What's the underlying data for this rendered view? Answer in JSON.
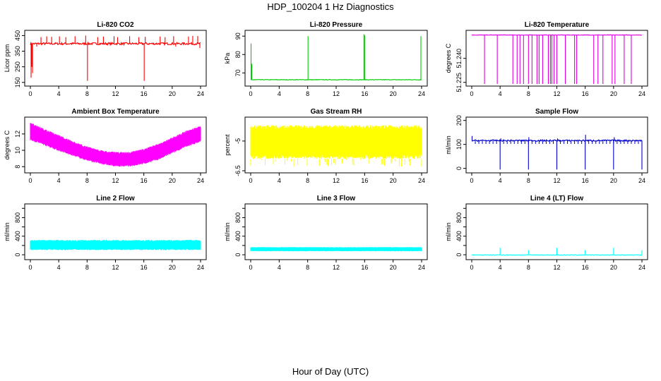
{
  "figure": {
    "title": "HDP_100204  1 Hz Diagnostics",
    "xlabel": "Hour of Day (UTC)"
  },
  "chart_data": [
    {
      "type": "line",
      "title": "Li-820 CO2",
      "ylabel": "Licor ppm",
      "color": "#ff0000",
      "xlim": [
        0,
        24
      ],
      "xticks": [
        0,
        4,
        8,
        12,
        16,
        20,
        24
      ],
      "ylim": [
        140,
        470
      ],
      "yticks": [
        150,
        250,
        350,
        450
      ],
      "baseline": 398,
      "noise": 7,
      "spikes": [
        [
          0.1,
          180
        ],
        [
          0.2,
          250
        ],
        [
          0.3,
          210
        ],
        [
          0.9,
          380
        ],
        [
          1.5,
          440
        ],
        [
          2.3,
          445
        ],
        [
          3.0,
          442
        ],
        [
          4.1,
          445
        ],
        [
          5.0,
          440
        ],
        [
          6.3,
          446
        ],
        [
          7.8,
          450
        ],
        [
          8.05,
          160
        ],
        [
          9.5,
          440
        ],
        [
          10.3,
          444
        ],
        [
          11.8,
          446
        ],
        [
          12.3,
          440
        ],
        [
          14.0,
          446
        ],
        [
          15.3,
          440
        ],
        [
          16.05,
          160
        ],
        [
          16.2,
          442
        ],
        [
          18.3,
          444
        ],
        [
          19.0,
          440
        ],
        [
          20.2,
          446
        ],
        [
          20.5,
          380
        ],
        [
          22.3,
          444
        ],
        [
          22.9,
          448
        ],
        [
          23.6,
          447
        ],
        [
          23.9,
          370
        ]
      ]
    },
    {
      "type": "line",
      "title": "Li-820 Pressure",
      "ylabel": "kPa",
      "color": "#00cc00",
      "xlim": [
        0,
        24
      ],
      "xticks": [
        0,
        4,
        8,
        12,
        16,
        20,
        24
      ],
      "ylim": [
        64,
        92
      ],
      "yticks": [
        70,
        80,
        90
      ],
      "baseline": 66.3,
      "noise": 0.15,
      "spikes": [
        [
          0.05,
          86
        ],
        [
          0.15,
          75
        ],
        [
          8.05,
          90
        ],
        [
          15.9,
          91
        ],
        [
          16.0,
          90.5
        ],
        [
          23.9,
          90
        ]
      ]
    },
    {
      "type": "line",
      "title": "Li-820 Temperature",
      "ylabel": "degrees C",
      "color": "#e000e0",
      "xlim": [
        0,
        24
      ],
      "xticks": [
        0,
        4,
        8,
        12,
        16,
        20,
        24
      ],
      "ylim": [
        51.224,
        51.2562
      ],
      "yticks": [
        51.225,
        51.24
      ],
      "yticklabels": [
        "51.225",
        "51.240"
      ],
      "baseline": 51.2546,
      "noise": 0.0001,
      "spikes": [
        [
          1.8,
          51.224
        ],
        [
          3.6,
          51.224
        ],
        [
          5.8,
          51.224
        ],
        [
          6.4,
          51.224
        ],
        [
          6.8,
          51.224
        ],
        [
          7.3,
          51.224
        ],
        [
          8.0,
          51.224
        ],
        [
          8.5,
          51.224
        ],
        [
          9.2,
          51.224
        ],
        [
          9.5,
          51.224
        ],
        [
          10.0,
          51.224
        ],
        [
          10.8,
          51.224
        ],
        [
          11.1,
          51.224
        ],
        [
          11.3,
          51.224
        ],
        [
          11.6,
          51.224
        ],
        [
          12.0,
          51.224
        ],
        [
          13.2,
          51.224
        ],
        [
          14.5,
          51.224
        ],
        [
          14.8,
          51.224
        ],
        [
          17.2,
          51.224
        ],
        [
          17.8,
          51.224
        ],
        [
          18.5,
          51.224
        ],
        [
          19.8,
          51.224
        ],
        [
          20.2,
          51.224
        ],
        [
          21.5,
          51.224
        ],
        [
          22.5,
          51.224
        ]
      ]
    },
    {
      "type": "line",
      "title": "Ambient Box Temperature",
      "ylabel": "degrees C",
      "color": "#ff00ff",
      "xlim": [
        0,
        24
      ],
      "xticks": [
        0,
        4,
        8,
        12,
        16,
        20,
        24
      ],
      "ylim": [
        7.5,
        13.8
      ],
      "yticks": [
        8,
        10,
        12
      ],
      "band": [
        [
          0,
          11.2,
          13.4
        ],
        [
          2,
          10.6,
          12.6
        ],
        [
          4,
          9.9,
          11.9
        ],
        [
          6,
          9.3,
          11.1
        ],
        [
          8,
          8.7,
          10.5
        ],
        [
          10,
          8.3,
          10.0
        ],
        [
          12,
          8.0,
          9.8
        ],
        [
          14,
          8.0,
          9.8
        ],
        [
          16,
          8.3,
          10.2
        ],
        [
          18,
          8.8,
          10.8
        ],
        [
          20,
          9.6,
          11.6
        ],
        [
          22,
          10.4,
          12.4
        ],
        [
          24,
          11.0,
          13.0
        ]
      ]
    },
    {
      "type": "line",
      "title": "Gas Stream RH",
      "ylabel": "percent",
      "color": "#ffff00",
      "xlim": [
        0,
        24
      ],
      "xticks": [
        0,
        4,
        8,
        12,
        16,
        20,
        24
      ],
      "ylim": [
        -6.5,
        -3.9
      ],
      "yticks": [
        -6.5,
        -5.0
      ],
      "band": [
        [
          0,
          -5.9,
          -4.2
        ],
        [
          24,
          -5.9,
          -4.2
        ]
      ],
      "outliers": -6.3
    },
    {
      "type": "line",
      "title": "Sample Flow",
      "ylabel": "ml/min",
      "color": "#0000cc",
      "xlim": [
        0,
        24
      ],
      "xticks": [
        0,
        4,
        8,
        12,
        16,
        20,
        24
      ],
      "ylim": [
        -10,
        205
      ],
      "yticks": [
        0,
        100,
        200
      ],
      "baseline": 116,
      "noise": 3,
      "spikes": [
        [
          0.05,
          135
        ],
        [
          4.0,
          -5
        ],
        [
          4.1,
          125
        ],
        [
          8.0,
          -5
        ],
        [
          8.05,
          130
        ],
        [
          12.0,
          -5
        ],
        [
          12.1,
          125
        ],
        [
          16.0,
          -5
        ],
        [
          16.05,
          140
        ],
        [
          20.0,
          -5
        ],
        [
          20.1,
          130
        ],
        [
          24.0,
          -5
        ]
      ],
      "dips": 102
    },
    {
      "type": "line",
      "title": "Line 2 Flow",
      "ylabel": "ml/min",
      "color": "#00ffff",
      "xlim": [
        0,
        24
      ],
      "xticks": [
        0,
        4,
        8,
        12,
        16,
        20,
        24
      ],
      "ylim": [
        -60,
        1050
      ],
      "yticks": [
        0,
        200,
        400,
        600,
        800,
        1000
      ],
      "yticklabels": [
        "0",
        "400",
        "800"
      ],
      "ylabelticks": [
        0,
        400,
        800
      ],
      "band": [
        [
          0,
          100,
          320
        ],
        [
          24,
          100,
          320
        ]
      ],
      "gaps": [
        4,
        8,
        12,
        16,
        20
      ]
    },
    {
      "type": "line",
      "title": "Line 3 Flow",
      "ylabel": "ml/min",
      "color": "#00ffff",
      "xlim": [
        0,
        24
      ],
      "xticks": [
        0,
        4,
        8,
        12,
        16,
        20,
        24
      ],
      "ylim": [
        -60,
        1050
      ],
      "yticks": [
        0,
        200,
        400,
        600,
        800,
        1000
      ],
      "yticklabels": [
        "0",
        "400",
        "800"
      ],
      "ylabelticks": [
        0,
        400,
        800
      ],
      "band": [
        [
          0,
          75,
          165
        ],
        [
          24,
          75,
          165
        ]
      ],
      "gaps": [
        4,
        8,
        12,
        16,
        20
      ]
    },
    {
      "type": "line",
      "title": "Line 4 (LT) Flow",
      "ylabel": "ml/min",
      "color": "#00ffff",
      "xlim": [
        0,
        24
      ],
      "xticks": [
        0,
        4,
        8,
        12,
        16,
        20,
        24
      ],
      "ylim": [
        -60,
        1050
      ],
      "yticks": [
        0,
        200,
        400,
        600,
        800,
        1000
      ],
      "yticklabels": [
        "0",
        "400",
        "800"
      ],
      "ylabelticks": [
        0,
        400,
        800
      ],
      "baseline": -5,
      "noise": 5,
      "spikes": [
        [
          4.0,
          150
        ],
        [
          8.0,
          100
        ],
        [
          12.0,
          150
        ],
        [
          16.0,
          100
        ],
        [
          20.0,
          150
        ],
        [
          24.0,
          100
        ]
      ]
    }
  ]
}
